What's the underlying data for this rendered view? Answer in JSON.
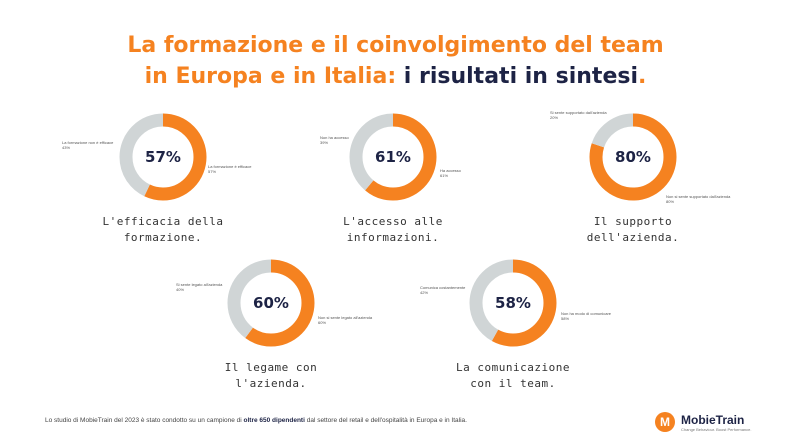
{
  "title": {
    "line1": "La formazione e il coinvolgimento del team",
    "line2_orange": "in Europa e in Italia:",
    "line2_navy": "i risultati in sintesi",
    "line2_dot": "."
  },
  "colors": {
    "orange": "#f58220",
    "gray": "#d0d5d6",
    "navy": "#1d2345"
  },
  "chart_data": [
    {
      "type": "pie",
      "center_label": "57%",
      "caption": [
        "L'efficacia della",
        "formazione."
      ],
      "slices": [
        {
          "label": "La formazione è efficace",
          "pct_label": "57%",
          "value": 57,
          "color": "#f58220"
        },
        {
          "label": "La formazione non è efficace",
          "pct_label": "43%",
          "value": 43,
          "color": "#d0d5d6"
        }
      ]
    },
    {
      "type": "pie",
      "center_label": "61%",
      "caption": [
        "L'accesso alle",
        "informazioni."
      ],
      "slices": [
        {
          "label": "Ha accesso",
          "pct_label": "61%",
          "value": 61,
          "color": "#f58220"
        },
        {
          "label": "Non ha accesso",
          "pct_label": "39%",
          "value": 39,
          "color": "#d0d5d6"
        }
      ]
    },
    {
      "type": "pie",
      "center_label": "80%",
      "caption": [
        "Il supporto",
        "dell'azienda."
      ],
      "slices": [
        {
          "label": "Non si sente supportato dall'azienda",
          "pct_label": "80%",
          "value": 80,
          "color": "#f58220"
        },
        {
          "label": "Si sente supportato dall'azienda",
          "pct_label": "20%",
          "value": 20,
          "color": "#d0d5d6"
        }
      ]
    },
    {
      "type": "pie",
      "center_label": "60%",
      "caption": [
        "Il legame con",
        "l'azienda."
      ],
      "slices": [
        {
          "label": "Non si sente legato all'azienda",
          "pct_label": "60%",
          "value": 60,
          "color": "#f58220"
        },
        {
          "label": "Si sente legato all'azienda",
          "pct_label": "40%",
          "value": 40,
          "color": "#d0d5d6"
        }
      ]
    },
    {
      "type": "pie",
      "center_label": "58%",
      "caption": [
        "La comunicazione",
        "con il team."
      ],
      "slices": [
        {
          "label": "Non ha modo di comunicare",
          "pct_label": "58%",
          "value": 58,
          "color": "#f58220"
        },
        {
          "label": "Comunica costantemente",
          "pct_label": "42%",
          "value": 42,
          "color": "#d0d5d6"
        }
      ]
    }
  ],
  "footnote": {
    "pre": "Lo studio di MobieTrain del 2023 è stato condotto su un campione di ",
    "bold": "oltre 650 dipendenti",
    "post": " dal settore del retail e dell'ospitalità in Europa e in Italia."
  },
  "logo": {
    "mark": "M",
    "name": "MobieTrain",
    "tagline": "Change Behaviour. Boost Performance."
  }
}
